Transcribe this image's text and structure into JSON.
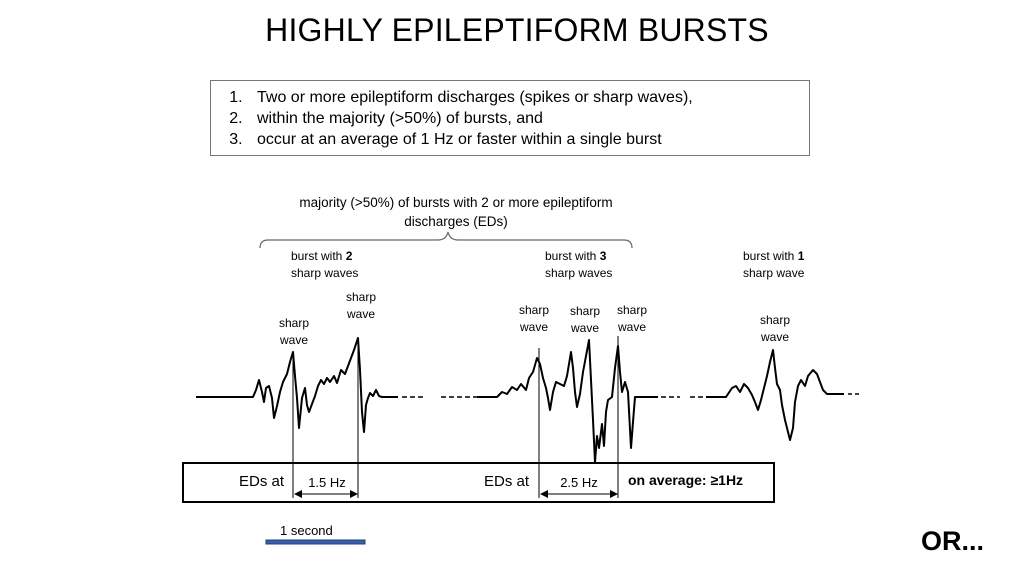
{
  "title": "HIGHLY EPILEPTIFORM BURSTS",
  "criteria": [
    "Two or more epileptiform discharges (spikes or sharp waves),",
    "within the majority (>50%) of bursts, and",
    "occur at an average of 1 Hz or faster within a single burst"
  ],
  "diagram": {
    "brace_label_line1": "majority (>50%) of bursts with 2 or more epileptiform",
    "brace_label_line2": "discharges (EDs)",
    "bursts": [
      {
        "label_prefix": "burst with ",
        "count": "2",
        "label_suffix": "sharp waves"
      },
      {
        "label_prefix": "burst with ",
        "count": "3",
        "label_suffix": "sharp waves"
      },
      {
        "label_prefix": "burst with ",
        "count": "1",
        "label_suffix": "sharp wave"
      }
    ],
    "wave_label_line1": "sharp",
    "wave_label_line2": "wave",
    "eds_label": "EDs at",
    "rate_1": "1.5 Hz",
    "rate_2": "2.5 Hz",
    "average_label": "on average: ≥1Hz",
    "scale_label": "1 second",
    "scale_color": "#3b5ea8"
  },
  "footer": "OR..."
}
